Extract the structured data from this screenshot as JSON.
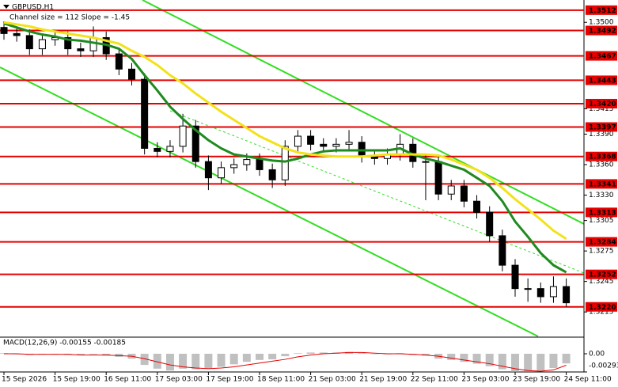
{
  "chart_data": [
    {
      "type": "candlestick",
      "title": "GBPUSD,H1",
      "subtitle": "Channel size = 112  Slope = -1.45",
      "categories": [
        "15 Sep 2026",
        null,
        null,
        null,
        "15 Sep 19:00",
        null,
        null,
        null,
        "16 Sep 11:00",
        null,
        null,
        null,
        "17 Sep 03:00",
        null,
        null,
        null,
        "17 Sep 19:00",
        null,
        null,
        null,
        "18 Sep 11:00",
        null,
        null,
        null,
        "21 Sep 03:00",
        null,
        null,
        null,
        "21 Sep 19:00",
        null,
        null,
        null,
        "22 Sep 11:00",
        null,
        null,
        null,
        "23 Sep 03:00",
        null,
        null,
        null,
        "23 Sep 19:00",
        null,
        null,
        null,
        "24 Sep 11:00"
      ],
      "open": [
        1.3495,
        1.3489,
        1.3487,
        1.3474,
        1.3483,
        1.3485,
        1.3474,
        1.3472,
        1.3485,
        1.3469,
        1.3454,
        1.3444,
        1.3376,
        1.3373,
        1.3378,
        1.3398,
        1.3363,
        1.3347,
        1.3357,
        1.336,
        1.3365,
        1.3355,
        1.3345,
        1.3378,
        1.3388,
        1.338,
        1.3378,
        1.338,
        1.3382,
        1.3368,
        1.3366,
        1.337,
        1.338,
        1.3363,
        1.3363,
        1.3331,
        1.3339,
        1.3324,
        1.3313,
        1.329,
        1.3261,
        1.3238,
        1.3238,
        1.323,
        1.324
      ],
      "high": [
        1.3501,
        1.3495,
        1.3493,
        1.3489,
        1.3491,
        1.3491,
        1.348,
        1.3496,
        1.3491,
        1.3475,
        1.346,
        1.345,
        1.3382,
        1.3384,
        1.341,
        1.3404,
        1.3369,
        1.3363,
        1.3366,
        1.3371,
        1.3371,
        1.3361,
        1.3384,
        1.3394,
        1.3394,
        1.3386,
        1.3386,
        1.3394,
        1.3388,
        1.3374,
        1.3376,
        1.339,
        1.3386,
        1.3369,
        1.3369,
        1.3345,
        1.3345,
        1.333,
        1.3319,
        1.3296,
        1.3267,
        1.3248,
        1.3244,
        1.325,
        1.3248
      ],
      "low": [
        1.3483,
        1.3481,
        1.3468,
        1.3468,
        1.3477,
        1.3468,
        1.3466,
        1.3466,
        1.3463,
        1.3448,
        1.3438,
        1.337,
        1.3367,
        1.3367,
        1.3372,
        1.3357,
        1.3335,
        1.3341,
        1.3351,
        1.3354,
        1.3349,
        1.3337,
        1.3339,
        1.3372,
        1.3374,
        1.3372,
        1.3372,
        1.3374,
        1.3362,
        1.336,
        1.336,
        1.3364,
        1.3357,
        1.3325,
        1.3325,
        1.3325,
        1.3318,
        1.3307,
        1.3284,
        1.3255,
        1.323,
        1.3225,
        1.3224,
        1.3224,
        1.322
      ],
      "close": [
        1.3489,
        1.3487,
        1.3474,
        1.3483,
        1.3485,
        1.3474,
        1.3472,
        1.3485,
        1.3469,
        1.3454,
        1.3444,
        1.3376,
        1.3373,
        1.3378,
        1.3398,
        1.3363,
        1.3347,
        1.3357,
        1.336,
        1.3365,
        1.3355,
        1.3345,
        1.3378,
        1.3388,
        1.338,
        1.3378,
        1.338,
        1.3382,
        1.3368,
        1.3366,
        1.337,
        1.338,
        1.3363,
        1.3363,
        1.3331,
        1.3339,
        1.3324,
        1.3313,
        1.329,
        1.3261,
        1.3238,
        1.3238,
        1.323,
        1.324,
        1.3224
      ],
      "up_color": "#ffffff",
      "down_color": "#000000",
      "moving_averages": [
        {
          "color": "#1f8a1f",
          "values": [
            1.3499,
            1.3495,
            1.3491,
            1.3488,
            1.3486,
            1.3483,
            1.3482,
            1.348,
            1.3478,
            1.3474,
            1.3464,
            1.3448,
            1.3433,
            1.3417,
            1.3405,
            1.3394,
            1.3384,
            1.3376,
            1.337,
            1.3368,
            1.3366,
            1.3364,
            1.3363,
            1.3366,
            1.337,
            1.3373,
            1.3374,
            1.3374,
            1.3374,
            1.3374,
            1.3374,
            1.3376,
            1.337,
            1.3366,
            1.3363,
            1.3359,
            1.3355,
            1.3347,
            1.3339,
            1.3324,
            1.3304,
            1.3289,
            1.3273,
            1.3261,
            1.3254
          ]
        },
        {
          "color": "#f2e21a",
          "values": [
            1.35,
            1.3498,
            1.3496,
            1.3493,
            1.3491,
            1.3489,
            1.3487,
            1.3485,
            1.3482,
            1.3479,
            1.3472,
            1.3466,
            1.3458,
            1.3448,
            1.344,
            1.343,
            1.3421,
            1.3412,
            1.3404,
            1.3396,
            1.3388,
            1.3382,
            1.3376,
            1.3372,
            1.337,
            1.3369,
            1.3368,
            1.3368,
            1.3368,
            1.3369,
            1.337,
            1.337,
            1.337,
            1.337,
            1.3369,
            1.3365,
            1.336,
            1.3355,
            1.3347,
            1.3337,
            1.3326,
            1.3316,
            1.3306,
            1.3295,
            1.3287
          ]
        }
      ],
      "levels": [
        1.3512,
        1.3492,
        1.3467,
        1.3443,
        {
          "value": 1.342,
          "label": "1.3420"
        },
        1.3397,
        1.3368,
        1.3341,
        1.3313,
        1.3284,
        1.3252,
        {
          "value": 1.322,
          "label": "1.3220"
        }
      ],
      "level_color": "#e60000",
      "ylim": [
        1.3191,
        1.3522
      ],
      "yticks": [
        {
          "value": 1.35,
          "label": "1.3500"
        },
        1.3415,
        {
          "value": 1.339,
          "label": "1.3390"
        },
        {
          "value": 1.336,
          "label": "1.3360"
        },
        {
          "value": 1.333,
          "label": "1.3330"
        },
        1.3305,
        1.3275,
        1.3245,
        1.3215
      ]
    },
    {
      "type": "macd",
      "title": "MACD(12,26,9) -0.00155 -0.00185",
      "values": [
        0.0001,
        -0.0001,
        -0.0002,
        -0.0001,
        -0.0001,
        -0.0002,
        -0.0002,
        -0.0001,
        -0.0003,
        -0.0005,
        -0.0008,
        -0.0018,
        -0.0024,
        -0.0027,
        -0.0024,
        -0.0025,
        -0.0024,
        -0.0021,
        -0.0017,
        -0.0013,
        -0.001,
        -0.0009,
        -0.0004,
        0.0001,
        0.0002,
        0.0002,
        0.0002,
        0.0003,
        0.0001,
        0,
        -0.0001,
        0.0001,
        -0.0002,
        -0.0003,
        -0.0008,
        -0.001,
        -0.0013,
        -0.0016,
        -0.002,
        -0.0025,
        -0.0029,
        -0.0028,
        -0.0027,
        -0.0023,
        -0.00155
      ],
      "signal": [
        0,
        0,
        -0.0001,
        -0.0001,
        -0.0001,
        -0.0001,
        -0.0002,
        -0.0002,
        -0.0002,
        -0.0003,
        -0.0004,
        -0.0008,
        -0.0013,
        -0.0018,
        -0.0021,
        -0.0023,
        -0.0024,
        -0.0023,
        -0.0021,
        -0.0018,
        -0.0015,
        -0.0012,
        -0.0009,
        -0.0005,
        -0.0002,
        0,
        0.0001,
        0.0002,
        0.0002,
        0.0001,
        0,
        0,
        -0.0001,
        -0.0002,
        -0.0004,
        -0.0007,
        -0.001,
        -0.0013,
        -0.0016,
        -0.002,
        -0.0024,
        -0.0027,
        -0.0028,
        -0.0026,
        -0.00185
      ],
      "color": "#c0c0c0",
      "signal_color": "#e60000",
      "ylim": [
        -0.00293,
        0.00242
      ],
      "yticks": [
        {
          "value": 0,
          "label": "0.00"
        },
        -0.00293
      ]
    }
  ]
}
